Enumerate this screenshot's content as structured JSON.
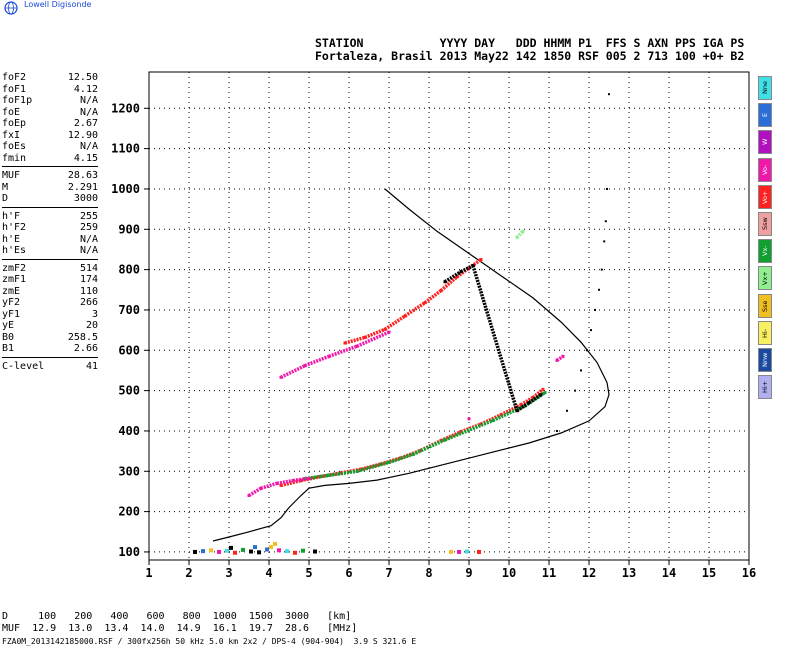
{
  "logo": {
    "text": "Lowell Digisonde"
  },
  "header": {
    "line1": "STATION           YYYY DAY   DDD HHMM P1  FFS S AXN PPS IGA PS",
    "line2": "Fortaleza, Brasil 2013 May22 142 1850 RSF 005 2 713 100 +0+ B2"
  },
  "params": {
    "group1": [
      {
        "label": "foF2",
        "value": "12.50"
      },
      {
        "label": "foF1",
        "value": "4.12"
      },
      {
        "label": "foF1p",
        "value": "N/A"
      },
      {
        "label": "foE",
        "value": "N/A"
      },
      {
        "label": "foEp",
        "value": "2.67"
      },
      {
        "label": "fxI",
        "value": "12.90"
      },
      {
        "label": "foEs",
        "value": "N/A"
      },
      {
        "label": "fmin",
        "value": "4.15"
      }
    ],
    "group2": [
      {
        "label": "MUF",
        "value": "28.63"
      },
      {
        "label": "M",
        "value": "2.291"
      },
      {
        "label": "D",
        "value": "3000"
      }
    ],
    "group3": [
      {
        "label": "h'F",
        "value": "255"
      },
      {
        "label": "h'F2",
        "value": "259"
      },
      {
        "label": "h'E",
        "value": "N/A"
      },
      {
        "label": "h'Es",
        "value": "N/A"
      }
    ],
    "group4": [
      {
        "label": "zmF2",
        "value": "514"
      },
      {
        "label": "zmF1",
        "value": "174"
      },
      {
        "label": "zmE",
        "value": "110"
      },
      {
        "label": "yF2",
        "value": "266"
      },
      {
        "label": "yF1",
        "value": "3"
      },
      {
        "label": "yE",
        "value": "20"
      },
      {
        "label": "B0",
        "value": "258.5"
      },
      {
        "label": "B1",
        "value": "2.66"
      }
    ],
    "group5": [
      {
        "label": "C-level",
        "value": "41"
      }
    ]
  },
  "legend": [
    {
      "label": "Nne",
      "color": "#40e0e8"
    },
    {
      "label": "E",
      "color": "#2a6fd8"
    },
    {
      "label": "W",
      "color": "#b010c0"
    },
    {
      "label": "Vo-",
      "color": "#f018a8"
    },
    {
      "label": "Vo+",
      "color": "#ff2020"
    },
    {
      "label": "Ssw",
      "color": "#f0a0a0"
    },
    {
      "label": "Vx-",
      "color": "#10a030"
    },
    {
      "label": "Vx+",
      "color": "#90f090"
    },
    {
      "label": "Sse",
      "color": "#f0c020"
    },
    {
      "label": "Hi-",
      "color": "#f8f060"
    },
    {
      "label": "Nnw",
      "color": "#1a4aa0"
    },
    {
      "label": "Hi+",
      "color": "#b0b0f0"
    }
  ],
  "bottom": {
    "d_row": "D     100   200   400   600   800  1000  1500  3000   [km]",
    "muf_row": "MUF  12.9  13.0  13.4  14.0  14.9  16.1  19.7  28.6   [MHz]",
    "footer": "FZA0M_2013142185000.RSF / 300fx256h 50 kHz 5.0 km 2x2 / DPS-4 (904-904)  3.9 S 321.6 E"
  },
  "chart_data": {
    "type": "scatter",
    "xlim": [
      1,
      16
    ],
    "ylim": [
      80,
      1290
    ],
    "x_ticks": [
      1,
      2,
      3,
      4,
      5,
      6,
      7,
      8,
      9,
      10,
      11,
      12,
      13,
      14,
      15,
      16
    ],
    "y_ticks": [
      100,
      200,
      300,
      400,
      500,
      600,
      700,
      800,
      900,
      1000,
      1100,
      1200
    ],
    "grid": true,
    "series": [
      {
        "color": "#000000",
        "kind": "line",
        "points": [
          [
            6.9,
            1000
          ],
          [
            7.5,
            950
          ],
          [
            8.2,
            895
          ],
          [
            9.0,
            840
          ],
          [
            9.8,
            785
          ],
          [
            10.6,
            730
          ],
          [
            11.3,
            670
          ],
          [
            11.8,
            620
          ],
          [
            12.2,
            570
          ],
          [
            12.45,
            520
          ],
          [
            12.5,
            490
          ],
          [
            12.4,
            460
          ],
          [
            12.0,
            425
          ],
          [
            11.3,
            395
          ],
          [
            10.5,
            370
          ],
          [
            9.5,
            345
          ],
          [
            8.5,
            320
          ],
          [
            7.5,
            295
          ],
          [
            6.7,
            278
          ],
          [
            6.0,
            270
          ],
          [
            5.4,
            265
          ],
          [
            5.0,
            258
          ],
          [
            4.8,
            240
          ],
          [
            4.5,
            210
          ],
          [
            4.3,
            185
          ],
          [
            4.05,
            165
          ],
          [
            3.5,
            150
          ],
          [
            3.0,
            137
          ],
          [
            2.6,
            127
          ]
        ]
      },
      {
        "color": "#ff2020",
        "kind": "trace",
        "points": [
          [
            4.3,
            265
          ],
          [
            4.8,
            277
          ],
          [
            5.3,
            287
          ],
          [
            5.8,
            296
          ],
          [
            6.3,
            305
          ],
          [
            6.8,
            318
          ],
          [
            7.3,
            333
          ],
          [
            7.8,
            352
          ],
          [
            8.3,
            376
          ],
          [
            8.8,
            398
          ],
          [
            9.3,
            417
          ],
          [
            9.8,
            440
          ],
          [
            10.3,
            465
          ],
          [
            10.6,
            483
          ],
          [
            10.85,
            503
          ]
        ]
      },
      {
        "color": "#10a030",
        "kind": "trace",
        "points": [
          [
            4.9,
            282
          ],
          [
            5.5,
            290
          ],
          [
            6.2,
            300
          ],
          [
            7.0,
            322
          ],
          [
            7.6,
            342
          ],
          [
            8.4,
            378
          ],
          [
            9.6,
            426
          ],
          [
            10.4,
            462
          ],
          [
            10.9,
            495
          ]
        ]
      },
      {
        "color": "#f018a8",
        "kind": "trace",
        "points": [
          [
            3.5,
            240
          ],
          [
            3.8,
            258
          ],
          [
            4.2,
            270
          ],
          [
            4.6,
            277
          ],
          [
            5.0,
            282
          ]
        ]
      },
      {
        "color": "#ff2020",
        "kind": "trace",
        "points": [
          [
            5.9,
            618
          ],
          [
            6.4,
            632
          ],
          [
            6.9,
            652
          ],
          [
            7.4,
            685
          ],
          [
            7.9,
            718
          ],
          [
            8.3,
            748
          ],
          [
            8.7,
            782
          ],
          [
            9.0,
            804
          ],
          [
            9.3,
            825
          ]
        ]
      },
      {
        "color": "#f018a8",
        "kind": "trace",
        "points": [
          [
            4.3,
            533
          ],
          [
            4.9,
            562
          ],
          [
            5.5,
            585
          ],
          [
            6.2,
            610
          ],
          [
            7.0,
            645
          ]
        ]
      },
      {
        "color": "#000000",
        "kind": "trace",
        "points": [
          [
            8.4,
            770
          ],
          [
            8.8,
            795
          ],
          [
            9.1,
            810
          ],
          [
            10.2,
            450
          ],
          [
            10.5,
            470
          ],
          [
            10.8,
            490
          ]
        ]
      },
      {
        "color": "#000000",
        "kind": "dots",
        "points": [
          [
            11.2,
            400
          ],
          [
            11.45,
            450
          ],
          [
            11.65,
            500
          ],
          [
            11.8,
            550
          ],
          [
            11.95,
            600
          ],
          [
            12.05,
            650
          ],
          [
            12.15,
            700
          ],
          [
            12.25,
            750
          ],
          [
            12.32,
            800
          ],
          [
            12.38,
            870
          ],
          [
            12.42,
            920
          ],
          [
            12.45,
            1000
          ],
          [
            12.5,
            1235
          ]
        ]
      },
      {
        "color": "#90f090",
        "kind": "trace",
        "points": [
          [
            10.2,
            880
          ],
          [
            10.35,
            895
          ]
        ]
      },
      {
        "color": "#f018a8",
        "kind": "trace",
        "points": [
          [
            11.2,
            575
          ],
          [
            11.35,
            585
          ],
          [
            9.0,
            430
          ]
        ]
      }
    ]
  }
}
